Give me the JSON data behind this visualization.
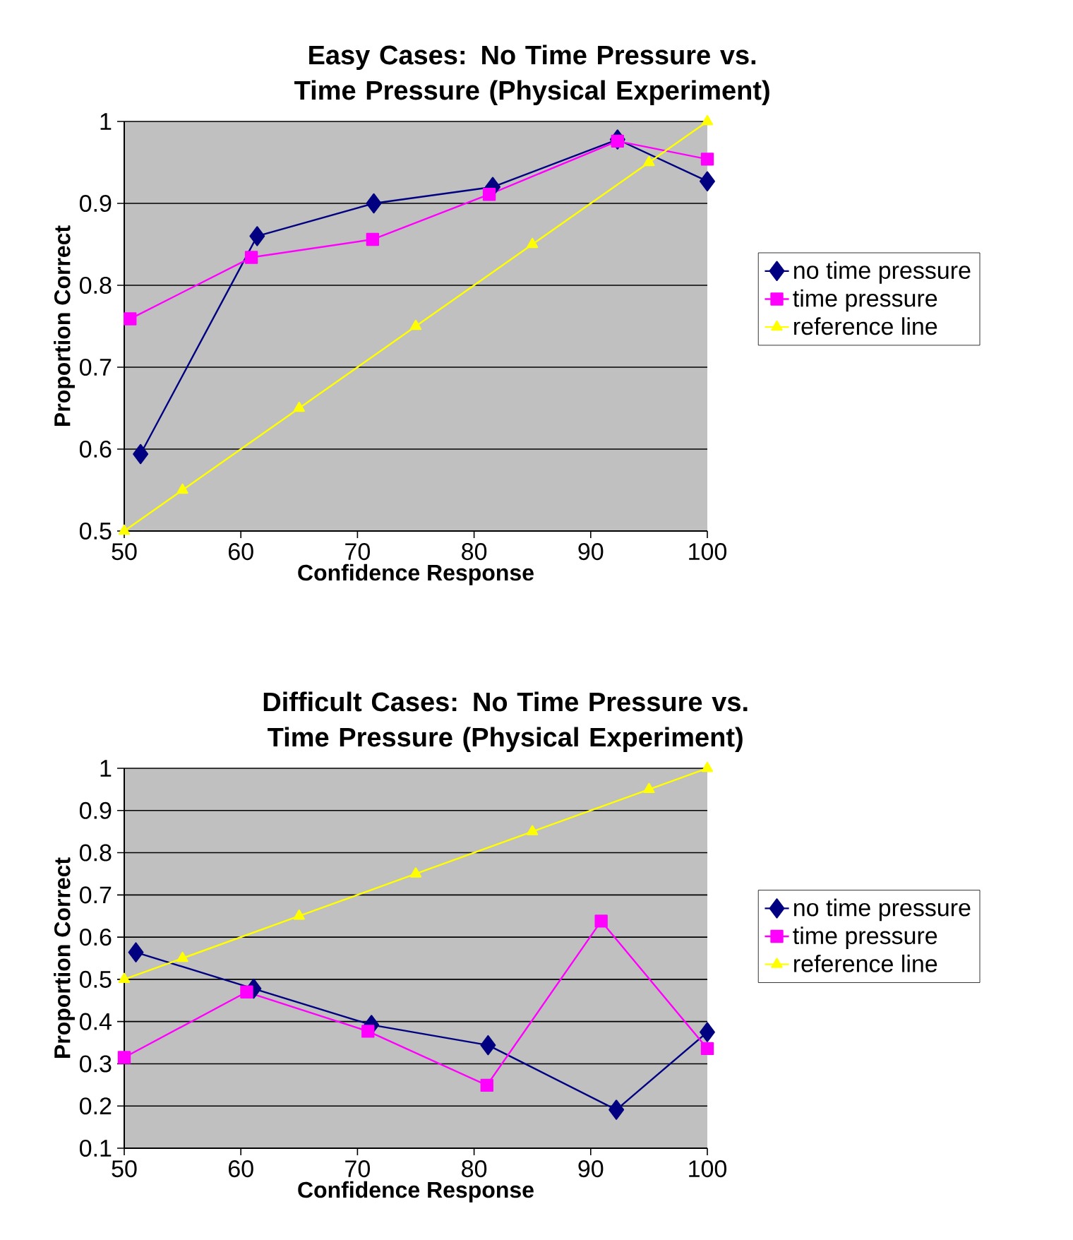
{
  "chart_data": [
    {
      "type": "line",
      "title": "Easy Cases: No Time Pressure vs. Time Pressure (Physical Experiment)",
      "xlabel": "Confidence Response",
      "ylabel": "Proportion Correct",
      "series": [
        {
          "name": "no time pressure",
          "color": "#000080",
          "marker": "diamond",
          "x": [
            51.4,
            61.4,
            71.4,
            81.6,
            92.3,
            100
          ],
          "values": [
            0.594,
            0.86,
            0.9,
            0.92,
            0.978,
            0.927
          ]
        },
        {
          "name": "time pressure",
          "color": "#ff00ff",
          "marker": "square",
          "x": [
            50.5,
            60.9,
            71.3,
            81.3,
            92.3,
            100
          ],
          "values": [
            0.759,
            0.834,
            0.856,
            0.911,
            0.976,
            0.954
          ]
        },
        {
          "name": "reference line",
          "color": "#ffff00",
          "marker": "triangle",
          "x": [
            50,
            55,
            65,
            75,
            85,
            95,
            100
          ],
          "values": [
            0.5,
            0.55,
            0.65,
            0.75,
            0.85,
            0.95,
            1
          ]
        }
      ],
      "xlim": [
        50,
        100
      ],
      "xticks": [
        50,
        60,
        70,
        80,
        90,
        100
      ],
      "ylim": [
        0.5,
        1
      ],
      "yticks": [
        0.5,
        0.6,
        0.7,
        0.8,
        0.9,
        1
      ],
      "grid": "y",
      "legend": "right",
      "line_style": "solid"
    },
    {
      "type": "line",
      "title": "Difficult Cases: No Time Pressure vs. Time Pressure (Physical Experiment)",
      "xlabel": "Confidence Response",
      "ylabel": "Proportion Correct",
      "series": [
        {
          "name": "no time pressure",
          "color": "#000080",
          "marker": "diamond",
          "x": [
            51.0,
            61.1,
            71.2,
            81.2,
            92.2,
            100
          ],
          "values": [
            0.564,
            0.478,
            0.392,
            0.344,
            0.191,
            0.375
          ]
        },
        {
          "name": "time pressure",
          "color": "#ff00ff",
          "marker": "square",
          "x": [
            50,
            60.5,
            70.9,
            81.1,
            90.9,
            100
          ],
          "values": [
            0.315,
            0.47,
            0.377,
            0.249,
            0.638,
            0.336
          ]
        },
        {
          "name": "reference line",
          "color": "#ffff00",
          "marker": "triangle",
          "x": [
            50,
            55,
            65,
            75,
            85,
            95,
            100
          ],
          "values": [
            0.5,
            0.55,
            0.65,
            0.75,
            0.85,
            0.95,
            1
          ]
        }
      ],
      "xlim": [
        50,
        100
      ],
      "xticks": [
        50,
        60,
        70,
        80,
        90,
        100
      ],
      "ylim": [
        0.1,
        1
      ],
      "yticks": [
        0.1,
        0.2,
        0.3,
        0.4,
        0.5,
        0.6,
        0.7,
        0.8,
        0.9,
        1
      ],
      "grid": "y",
      "legend": "right",
      "line_style": "solid"
    }
  ]
}
